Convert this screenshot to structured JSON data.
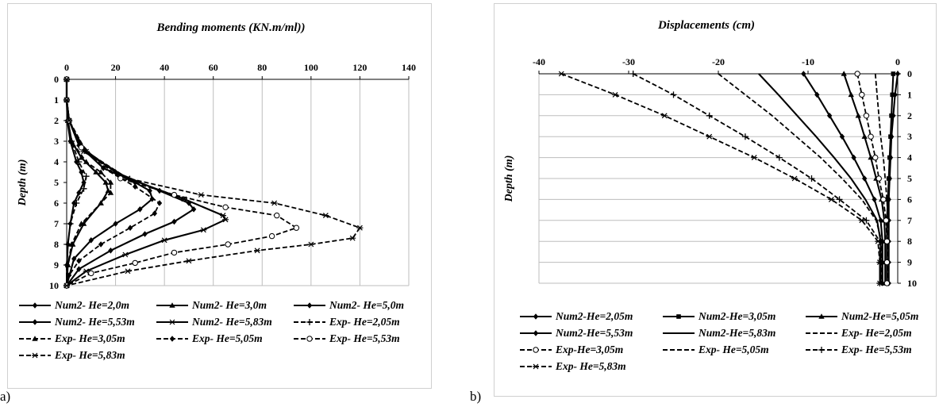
{
  "captions": {
    "a": "a)",
    "b": "b)"
  },
  "chart_data": [
    {
      "type": "line",
      "title": "Bending moments (KN.m/ml))",
      "xlabel": "",
      "ylabel": "Depth (m)",
      "x_ticks": [
        "0",
        "20",
        "40",
        "60",
        "80",
        "100",
        "120",
        "140"
      ],
      "y_ticks": [
        "0",
        "1",
        "2",
        "3",
        "4",
        "5",
        "6",
        "7",
        "8",
        "9",
        "10"
      ],
      "xlim": [
        0,
        140
      ],
      "ylim": [
        0,
        10
      ],
      "x_axis_position": "top",
      "y_inverted": true,
      "grid": "vertical-major",
      "legend_position": "bottom",
      "series": [
        {
          "name": "Num2- He=2,0m",
          "style": "solid",
          "marker": "diamond",
          "points": [
            [
              0,
              0
            ],
            [
              0,
              1
            ],
            [
              0.3,
              2
            ],
            [
              1.5,
              3
            ],
            [
              4,
              4
            ],
            [
              6,
              4.5
            ],
            [
              7,
              5
            ],
            [
              5,
              5.5
            ],
            [
              3,
              6
            ],
            [
              1.5,
              7
            ],
            [
              0.5,
              8
            ],
            [
              0.1,
              9
            ],
            [
              0,
              10
            ]
          ]
        },
        {
          "name": "Num2- He=3,0m",
          "style": "solid",
          "marker": "triangle",
          "points": [
            [
              0,
              0
            ],
            [
              0,
              1
            ],
            [
              0.5,
              2
            ],
            [
              2,
              3
            ],
            [
              6,
              3.8
            ],
            [
              12,
              4.5
            ],
            [
              16,
              5
            ],
            [
              17,
              5.4
            ],
            [
              14,
              6
            ],
            [
              7,
              7
            ],
            [
              2.5,
              8
            ],
            [
              0.5,
              9
            ],
            [
              0,
              10
            ]
          ]
        },
        {
          "name": "Num2- He=5,0m",
          "style": "solid",
          "marker": "diamond",
          "points": [
            [
              0,
              0
            ],
            [
              0,
              1
            ],
            [
              1,
              2
            ],
            [
              5,
              3.2
            ],
            [
              15,
              4.3
            ],
            [
              28,
              5
            ],
            [
              34,
              5.4
            ],
            [
              35,
              5.8
            ],
            [
              30,
              6.3
            ],
            [
              20,
              7
            ],
            [
              10,
              7.8
            ],
            [
              3,
              8.7
            ],
            [
              0,
              10
            ]
          ]
        },
        {
          "name": "Num2- He=5,53m",
          "style": "solid",
          "marker": "diamond",
          "points": [
            [
              0,
              0
            ],
            [
              0,
              1
            ],
            [
              1,
              2
            ],
            [
              6,
              3.3
            ],
            [
              20,
              4.5
            ],
            [
              38,
              5.4
            ],
            [
              50,
              6
            ],
            [
              52,
              6.3
            ],
            [
              44,
              6.9
            ],
            [
              32,
              7.5
            ],
            [
              18,
              8.3
            ],
            [
              5,
              9.2
            ],
            [
              0,
              10
            ]
          ]
        },
        {
          "name": "Num2- He=5,83m",
          "style": "solid",
          "marker": "asterisk",
          "points": [
            [
              0,
              0
            ],
            [
              0,
              1
            ],
            [
              1,
              2
            ],
            [
              7,
              3.5
            ],
            [
              25,
              4.8
            ],
            [
              48,
              5.8
            ],
            [
              64,
              6.6
            ],
            [
              65,
              6.8
            ],
            [
              56,
              7.3
            ],
            [
              40,
              7.8
            ],
            [
              24,
              8.5
            ],
            [
              8,
              9.3
            ],
            [
              0,
              10
            ]
          ]
        },
        {
          "name": "Exp- He=2,05m",
          "style": "dashed",
          "marker": "plus",
          "points": [
            [
              0,
              0
            ],
            [
              0,
              1
            ],
            [
              0.5,
              2
            ],
            [
              2,
              3
            ],
            [
              5,
              4
            ],
            [
              8,
              4.7
            ],
            [
              7,
              5.3
            ],
            [
              4,
              6
            ],
            [
              1.5,
              7
            ],
            [
              0.5,
              8
            ],
            [
              0,
              9
            ],
            [
              0,
              10
            ]
          ]
        },
        {
          "name": "Exp- He=3,05m",
          "style": "dashed",
          "marker": "triangle",
          "points": [
            [
              0,
              0
            ],
            [
              0,
              1
            ],
            [
              0.5,
              2
            ],
            [
              2,
              3
            ],
            [
              8,
              4
            ],
            [
              14,
              4.5
            ],
            [
              18,
              5
            ],
            [
              18,
              5.5
            ],
            [
              14,
              6
            ],
            [
              6,
              7
            ],
            [
              2,
              8
            ],
            [
              0.5,
              9
            ],
            [
              0,
              10
            ]
          ]
        },
        {
          "name": "Exp- He=5,05m",
          "style": "dashed",
          "marker": "diamond",
          "points": [
            [
              0,
              0
            ],
            [
              0,
              1
            ],
            [
              1,
              2
            ],
            [
              5,
              3
            ],
            [
              15,
              4.3
            ],
            [
              28,
              5.2
            ],
            [
              38,
              6
            ],
            [
              36,
              6.5
            ],
            [
              26,
              7.2
            ],
            [
              14,
              8
            ],
            [
              5,
              8.8
            ],
            [
              1,
              9.5
            ],
            [
              0,
              10
            ]
          ]
        },
        {
          "name": "Exp- He=5,53m",
          "style": "dashed",
          "marker": "circle",
          "points": [
            [
              0,
              0
            ],
            [
              0,
              1
            ],
            [
              1,
              2
            ],
            [
              6,
              3.3
            ],
            [
              22,
              4.8
            ],
            [
              44,
              5.6
            ],
            [
              65,
              6.2
            ],
            [
              86,
              6.6
            ],
            [
              94,
              7.2
            ],
            [
              84,
              7.6
            ],
            [
              66,
              8
            ],
            [
              44,
              8.4
            ],
            [
              28,
              8.9
            ],
            [
              10,
              9.4
            ],
            [
              0,
              10
            ]
          ]
        },
        {
          "name": "Exp- He=5,83m",
          "style": "dashed",
          "marker": "asterisk",
          "points": [
            [
              0,
              0
            ],
            [
              0,
              1
            ],
            [
              1,
              2
            ],
            [
              8,
              3.5
            ],
            [
              25,
              4.8
            ],
            [
              55,
              5.6
            ],
            [
              85,
              6
            ],
            [
              106,
              6.6
            ],
            [
              120,
              7.2
            ],
            [
              117,
              7.7
            ],
            [
              100,
              8
            ],
            [
              78,
              8.3
            ],
            [
              50,
              8.8
            ],
            [
              25,
              9.3
            ],
            [
              0,
              10
            ]
          ]
        }
      ]
    },
    {
      "type": "line",
      "title": "Displacements (cm)",
      "xlabel": "",
      "ylabel": "Depth (m)",
      "x_ticks": [
        "-40",
        "-30",
        "-20",
        "-10",
        "0"
      ],
      "y_ticks": [
        "0",
        "1",
        "2",
        "3",
        "4",
        "5",
        "6",
        "7",
        "8",
        "9",
        "10"
      ],
      "xlim": [
        -40,
        0
      ],
      "ylim": [
        0,
        10
      ],
      "x_axis_position": "top",
      "y_axis_position": "right",
      "y_inverted": true,
      "grid": "horizontal-major",
      "legend_position": "bottom",
      "series": [
        {
          "name": "Num2-He=2,05m",
          "style": "solid",
          "marker": "diamond",
          "points": [
            [
              0,
              0
            ],
            [
              -0.3,
              1
            ],
            [
              -0.5,
              2
            ],
            [
              -0.7,
              3
            ],
            [
              -0.8,
              4
            ],
            [
              -0.9,
              5
            ],
            [
              -1,
              6
            ],
            [
              -1,
              7
            ],
            [
              -1,
              8
            ],
            [
              -1,
              9
            ],
            [
              -1,
              10
            ]
          ]
        },
        {
          "name": "Num2-He=3,05m",
          "style": "solid",
          "marker": "square",
          "points": [
            [
              -0.5,
              0
            ],
            [
              -0.6,
              1
            ],
            [
              -0.7,
              2
            ],
            [
              -0.8,
              3
            ],
            [
              -0.9,
              4
            ],
            [
              -1,
              5
            ],
            [
              -1.1,
              6
            ],
            [
              -1.2,
              7
            ],
            [
              -1.2,
              8
            ],
            [
              -1.2,
              9
            ],
            [
              -1.2,
              10
            ]
          ]
        },
        {
          "name": "Num2-He=5,05m",
          "style": "solid",
          "marker": "triangle",
          "points": [
            [
              -6,
              0
            ],
            [
              -5.2,
              1
            ],
            [
              -4.4,
              2
            ],
            [
              -3.7,
              3
            ],
            [
              -3,
              4
            ],
            [
              -2.4,
              5
            ],
            [
              -1.8,
              6
            ],
            [
              -1.5,
              7
            ],
            [
              -1.4,
              8
            ],
            [
              -1.4,
              9
            ],
            [
              -1.4,
              10
            ]
          ]
        },
        {
          "name": "Num2-He=5,53m",
          "style": "solid",
          "marker": "diamond",
          "points": [
            [
              -10.5,
              0
            ],
            [
              -9,
              1
            ],
            [
              -7.6,
              2
            ],
            [
              -6.2,
              3
            ],
            [
              -4.9,
              4
            ],
            [
              -3.7,
              5
            ],
            [
              -2.6,
              6
            ],
            [
              -1.9,
              7
            ],
            [
              -1.7,
              8
            ],
            [
              -1.7,
              9
            ],
            [
              -1.7,
              10
            ]
          ]
        },
        {
          "name": "Num2-He=5,83m",
          "style": "solid",
          "marker": "none",
          "points": [
            [
              -15.5,
              0
            ],
            [
              -13.3,
              1
            ],
            [
              -11.2,
              2
            ],
            [
              -9.1,
              3
            ],
            [
              -7.1,
              4
            ],
            [
              -5.2,
              5
            ],
            [
              -3.6,
              6
            ],
            [
              -2.3,
              7
            ],
            [
              -1.9,
              8
            ],
            [
              -1.9,
              9
            ],
            [
              -1.9,
              10
            ]
          ]
        },
        {
          "name": "Exp- He=2,05m",
          "style": "dashed",
          "marker": "none",
          "points": [
            [
              -2.5,
              0
            ],
            [
              -2.3,
              1
            ],
            [
              -2.1,
              2
            ],
            [
              -1.9,
              3
            ],
            [
              -1.6,
              4
            ],
            [
              -1.4,
              5
            ],
            [
              -1.2,
              6
            ],
            [
              -1.1,
              7
            ],
            [
              -1.1,
              8
            ],
            [
              -1.1,
              9
            ],
            [
              -1.1,
              10
            ]
          ]
        },
        {
          "name": "Exp-He=3,05m",
          "style": "dashed",
          "marker": "circle",
          "points": [
            [
              -4.5,
              0
            ],
            [
              -4,
              1
            ],
            [
              -3.5,
              2
            ],
            [
              -3,
              3
            ],
            [
              -2.5,
              4
            ],
            [
              -2.1,
              5
            ],
            [
              -1.6,
              6
            ],
            [
              -1.3,
              7
            ],
            [
              -1.2,
              8
            ],
            [
              -1.2,
              9
            ],
            [
              -1.2,
              10
            ]
          ]
        },
        {
          "name": "Exp- He=5,05m",
          "style": "dashed",
          "marker": "none",
          "points": [
            [
              -20,
              0
            ],
            [
              -17,
              1
            ],
            [
              -14,
              2
            ],
            [
              -11.3,
              3
            ],
            [
              -8.6,
              4
            ],
            [
              -6.2,
              5
            ],
            [
              -4,
              6
            ],
            [
              -2.4,
              7
            ],
            [
              -1.8,
              8
            ],
            [
              -1.8,
              9
            ],
            [
              -1.8,
              10
            ]
          ]
        },
        {
          "name": "Exp- He=5,53m",
          "style": "dashed",
          "marker": "plus",
          "points": [
            [
              -29.5,
              0
            ],
            [
              -25,
              1
            ],
            [
              -21,
              2
            ],
            [
              -17,
              3
            ],
            [
              -13.2,
              4
            ],
            [
              -9.6,
              5
            ],
            [
              -6.5,
              6
            ],
            [
              -3.5,
              7
            ],
            [
              -2,
              8
            ],
            [
              -2,
              9
            ],
            [
              -2,
              10
            ]
          ]
        },
        {
          "name": "Exp- He=5,83m",
          "style": "dashed",
          "marker": "asterisk",
          "points": [
            [
              -37.5,
              0
            ],
            [
              -31.5,
              1
            ],
            [
              -26,
              2
            ],
            [
              -21,
              3
            ],
            [
              -16,
              4
            ],
            [
              -11.5,
              5
            ],
            [
              -7.4,
              6
            ],
            [
              -4,
              7
            ],
            [
              -2.2,
              8
            ],
            [
              -2,
              9
            ],
            [
              -2,
              10
            ]
          ]
        }
      ]
    }
  ]
}
